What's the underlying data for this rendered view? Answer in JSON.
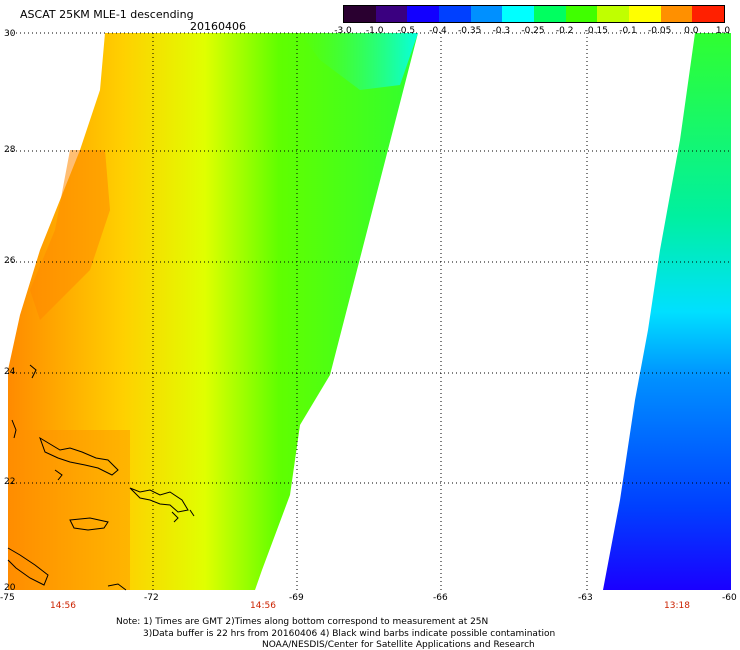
{
  "header": {
    "title": "ASCAT 25KM MLE-1 descending",
    "date": "20160406"
  },
  "colorbar": {
    "colors": [
      "#2a0030",
      "#3a0080",
      "#1200ff",
      "#0040ff",
      "#0090ff",
      "#00ffff",
      "#00ff60",
      "#40ff00",
      "#c0ff00",
      "#ffff00",
      "#ff9000",
      "#ff2000"
    ],
    "labels": [
      "-3.0",
      "-1.0",
      "-0.5",
      "-0.4",
      "-0.35",
      "-0.3",
      "-0.25",
      "-0.2",
      "-0.15",
      "-0.1",
      "-0.05",
      "0.0",
      "1.0"
    ]
  },
  "axes": {
    "lat_labels": [
      "30",
      "28",
      "26",
      "24",
      "22",
      "20"
    ],
    "lon_labels": [
      "-75",
      "-72",
      "-69",
      "-66",
      "-63",
      "-60"
    ],
    "times": [
      "14:56",
      "14:56",
      "13:18"
    ]
  },
  "notes": {
    "line1": "Note: 1) Times are GMT 2)Times along bottom correspond to measurement at 25N",
    "line2": "3)Data buffer is 22 hrs from 20160406 4) Black wind barbs indicate possible contamination",
    "line3": "NOAA/NESDIS/Center for Satellite Applications and Research"
  }
}
